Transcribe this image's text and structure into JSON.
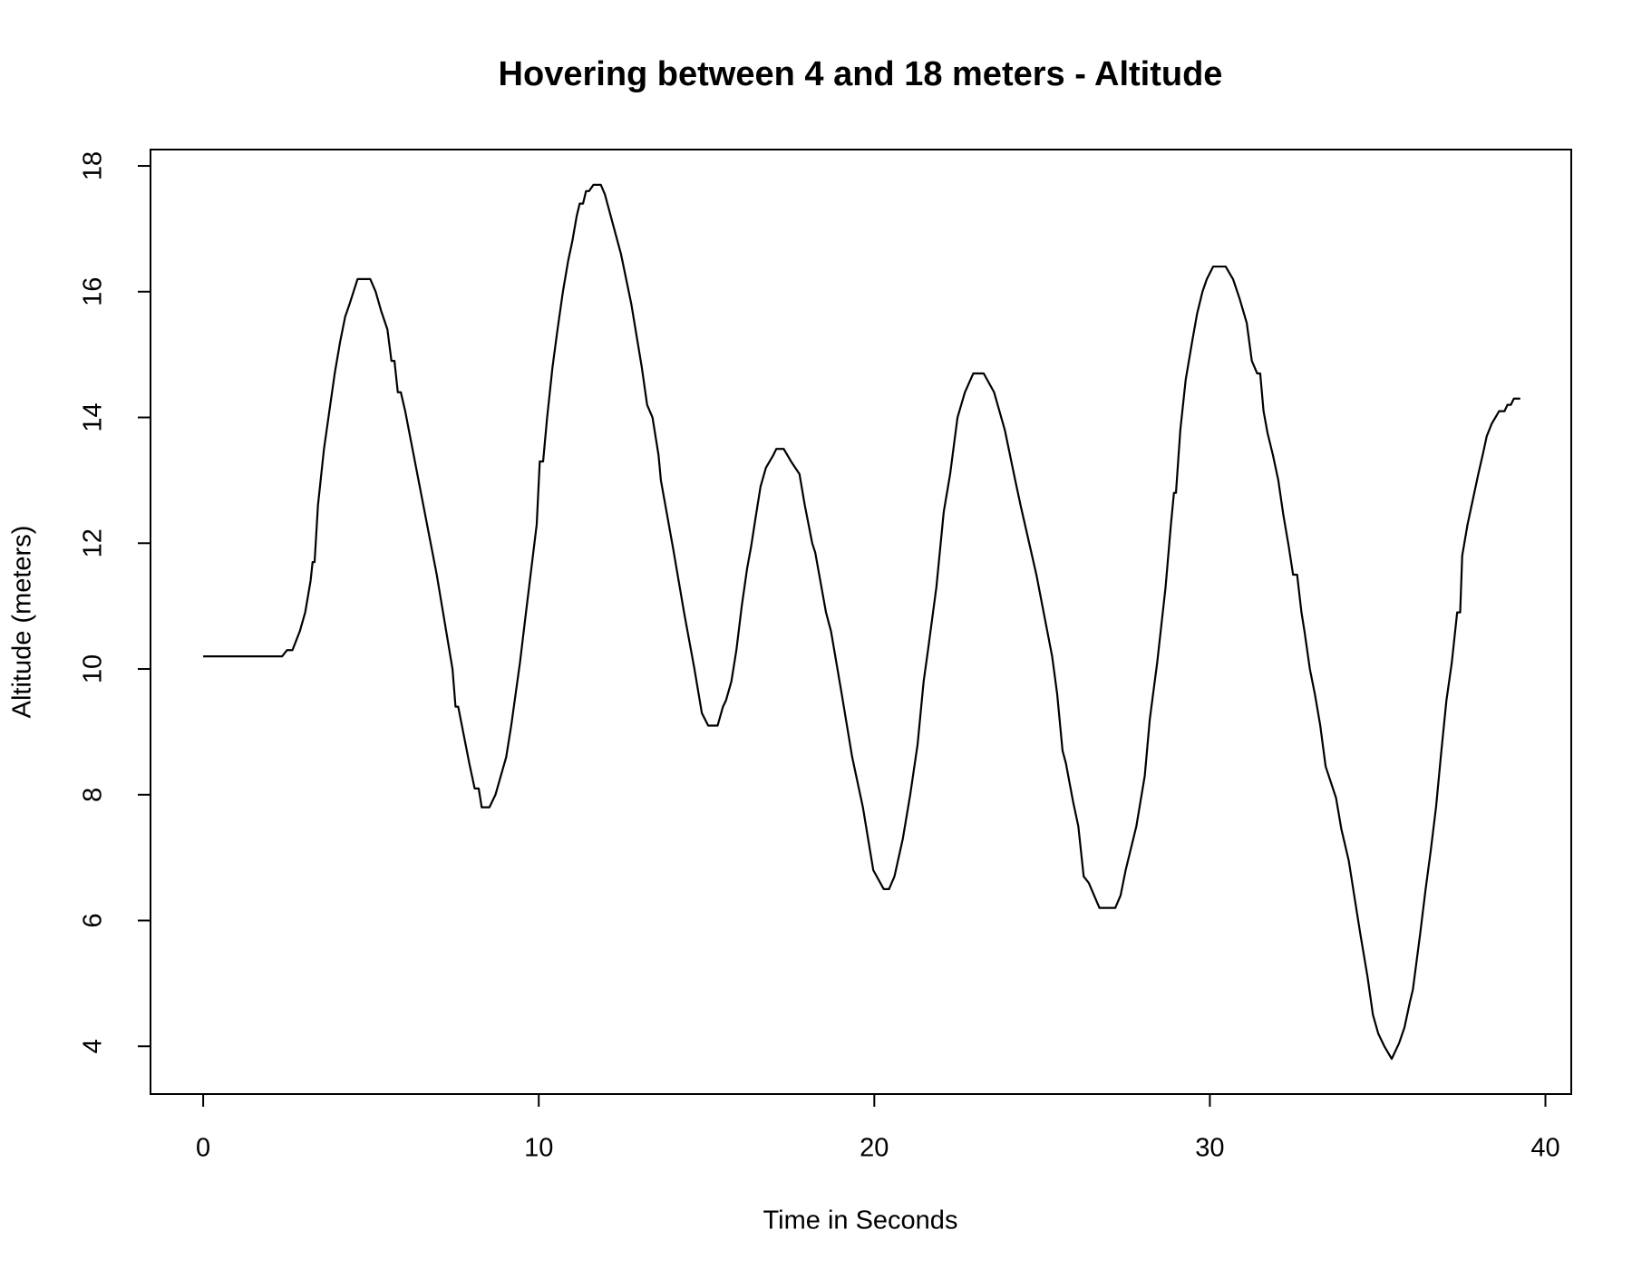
{
  "chart_data": {
    "type": "line",
    "title": "Hovering between 4 and 18 meters - Altitude",
    "x_label": "Time in Seconds",
    "y_label": "Altitude (meters)",
    "color": "#000000",
    "x": [
      0,
      2.35,
      2.5,
      2.66,
      2.88,
      3.04,
      3.2,
      3.26,
      3.32,
      3.42,
      3.6,
      3.76,
      3.92,
      4.08,
      4.23,
      4.36,
      4.48,
      4.6,
      4.98,
      5.14,
      5.3,
      5.49,
      5.61,
      5.7,
      5.8,
      5.89,
      6.02,
      6.49,
      6.96,
      7.43,
      7.52,
      7.6,
      7.93,
      8.09,
      8.21,
      8.3,
      8.53,
      8.71,
      9.03,
      9.18,
      9.31,
      9.44,
      9.62,
      9.78,
      9.94,
      10.03,
      10.13,
      10.25,
      10.41,
      10.56,
      10.72,
      10.88,
      11.0,
      11.13,
      11.22,
      11.32,
      11.41,
      11.5,
      11.63,
      11.85,
      11.97,
      12.45,
      12.76,
      13.07,
      13.23,
      13.39,
      13.57,
      13.64,
      14.01,
      14.33,
      14.64,
      14.86,
      15.05,
      15.33,
      15.49,
      15.58,
      15.74,
      15.89,
      16.05,
      16.21,
      16.33,
      16.46,
      16.61,
      16.77,
      16.99,
      17.08,
      17.3,
      17.52,
      17.77,
      17.93,
      18.15,
      18.24,
      18.56,
      18.71,
      19.03,
      19.34,
      19.66,
      19.97,
      20.28,
      20.44,
      20.6,
      20.85,
      21.07,
      21.29,
      21.47,
      21.6,
      21.85,
      22.07,
      22.26,
      22.48,
      22.7,
      22.95,
      23.26,
      23.57,
      23.89,
      24.2,
      24.36,
      24.83,
      25.3,
      25.45,
      25.61,
      25.71,
      25.92,
      26.08,
      26.24,
      26.39,
      26.55,
      26.71,
      27.18,
      27.34,
      27.49,
      27.81,
      28.06,
      28.21,
      28.43,
      28.68,
      28.84,
      28.93,
      28.99,
      29.12,
      29.28,
      29.47,
      29.62,
      29.78,
      29.91,
      30.1,
      30.47,
      30.69,
      30.88,
      31.1,
      31.25,
      31.41,
      31.5,
      31.6,
      31.72,
      31.88,
      32.04,
      32.19,
      32.35,
      32.48,
      32.6,
      32.73,
      32.82,
      32.98,
      33.13,
      33.29,
      33.45,
      33.76,
      33.92,
      34.14,
      34.39,
      34.48,
      34.7,
      34.86,
      35.02,
      35.2,
      35.42,
      35.64,
      35.8,
      35.96,
      36.05,
      36.27,
      36.43,
      36.58,
      36.74,
      36.9,
      37.05,
      37.21,
      37.37,
      37.46,
      37.52,
      37.68,
      37.84,
      38.0,
      38.15,
      38.25,
      38.4,
      38.62,
      38.78,
      38.87,
      38.97,
      39.06,
      39.25
    ],
    "values": [
      10.2,
      10.2,
      10.3,
      10.3,
      10.6,
      10.9,
      11.4,
      11.7,
      11.7,
      12.6,
      13.5,
      14.1,
      14.7,
      15.2,
      15.6,
      15.8,
      16.0,
      16.2,
      16.2,
      16.0,
      15.7,
      15.4,
      14.9,
      14.9,
      14.4,
      14.4,
      14.1,
      12.8,
      11.5,
      10.0,
      9.4,
      9.4,
      8.5,
      8.1,
      8.1,
      7.8,
      7.8,
      8.0,
      8.6,
      9.1,
      9.6,
      10.1,
      10.9,
      11.6,
      12.3,
      13.3,
      13.3,
      14.0,
      14.8,
      15.4,
      16.0,
      16.5,
      16.8,
      17.2,
      17.4,
      17.4,
      17.6,
      17.6,
      17.7,
      17.7,
      17.55,
      16.6,
      15.8,
      14.8,
      14.2,
      14.0,
      13.4,
      13.0,
      11.9,
      10.9,
      10.0,
      9.3,
      9.1,
      9.1,
      9.4,
      9.5,
      9.8,
      10.3,
      11.0,
      11.6,
      11.95,
      12.4,
      12.9,
      13.2,
      13.4,
      13.5,
      13.5,
      13.3,
      13.1,
      12.6,
      12.0,
      11.85,
      10.9,
      10.6,
      9.6,
      8.6,
      7.8,
      6.8,
      6.5,
      6.5,
      6.7,
      7.3,
      8.0,
      8.8,
      9.8,
      10.3,
      11.3,
      12.5,
      13.1,
      14.0,
      14.4,
      14.7,
      14.7,
      14.4,
      13.8,
      13.0,
      12.6,
      11.5,
      10.2,
      9.6,
      8.7,
      8.5,
      7.9,
      7.5,
      6.7,
      6.6,
      6.4,
      6.2,
      6.2,
      6.4,
      6.8,
      7.5,
      8.3,
      9.2,
      10.1,
      11.3,
      12.3,
      12.8,
      12.8,
      13.8,
      14.6,
      15.2,
      15.65,
      16.0,
      16.2,
      16.4,
      16.4,
      16.2,
      15.9,
      15.5,
      14.9,
      14.7,
      14.7,
      14.1,
      13.75,
      13.4,
      13.0,
      12.45,
      11.95,
      11.5,
      11.5,
      10.9,
      10.6,
      10.0,
      9.6,
      9.1,
      8.45,
      7.95,
      7.45,
      6.95,
      6.1,
      5.8,
      5.1,
      4.5,
      4.2,
      4.0,
      3.8,
      4.05,
      4.3,
      4.7,
      4.9,
      5.8,
      6.5,
      7.1,
      7.8,
      8.7,
      9.5,
      10.1,
      10.9,
      10.9,
      11.8,
      12.3,
      12.7,
      13.1,
      13.45,
      13.7,
      13.9,
      14.1,
      14.1,
      14.2,
      14.2,
      14.3,
      14.3
    ],
    "xlim": [
      -1.57,
      40.77
    ],
    "ylim": [
      3.24,
      18.26
    ],
    "xticks": [
      0,
      10,
      20,
      30,
      40
    ],
    "yticks": [
      4,
      6,
      8,
      10,
      12,
      14,
      16,
      18
    ]
  }
}
